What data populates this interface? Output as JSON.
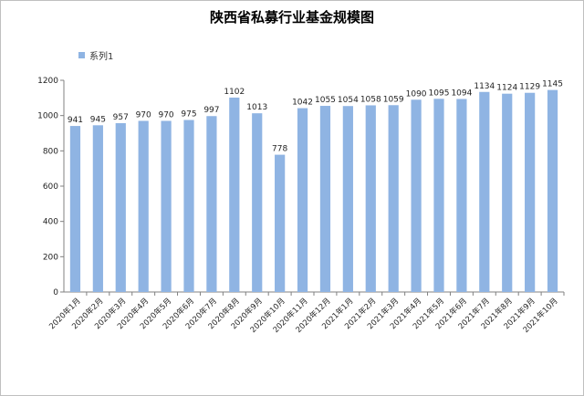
{
  "chart_data": {
    "type": "bar",
    "title": "陕西省私募行业基金规模图",
    "legend": {
      "position": "top-left",
      "series_name": "系列1"
    },
    "xlabel": "",
    "ylabel": "",
    "ylim": [
      0,
      1200
    ],
    "yticks": [
      0,
      200,
      400,
      600,
      800,
      1000,
      1200
    ],
    "grid": false,
    "bar_color": "#8fb4e3",
    "categories": [
      "2020年1月",
      "2020年2月",
      "2020年3月",
      "2020年4月",
      "2020年5月",
      "2020年6月",
      "2020年7月",
      "2020年8月",
      "2020年9月",
      "2020年10月",
      "2020年11月",
      "2020年12月",
      "2021年1月",
      "2021年2月",
      "2021年3月",
      "2021年4月",
      "2021年5月",
      "2021年6月",
      "2021年7月",
      "2021年8月",
      "2021年9月",
      "2021年10月"
    ],
    "series": [
      {
        "name": "系列1",
        "values": [
          941,
          945,
          957,
          970,
          970,
          975,
          997,
          1102,
          1013,
          778,
          1042,
          1055,
          1054,
          1058,
          1059,
          1090,
          1095,
          1094,
          1134,
          1124,
          1129,
          1145
        ]
      }
    ]
  }
}
